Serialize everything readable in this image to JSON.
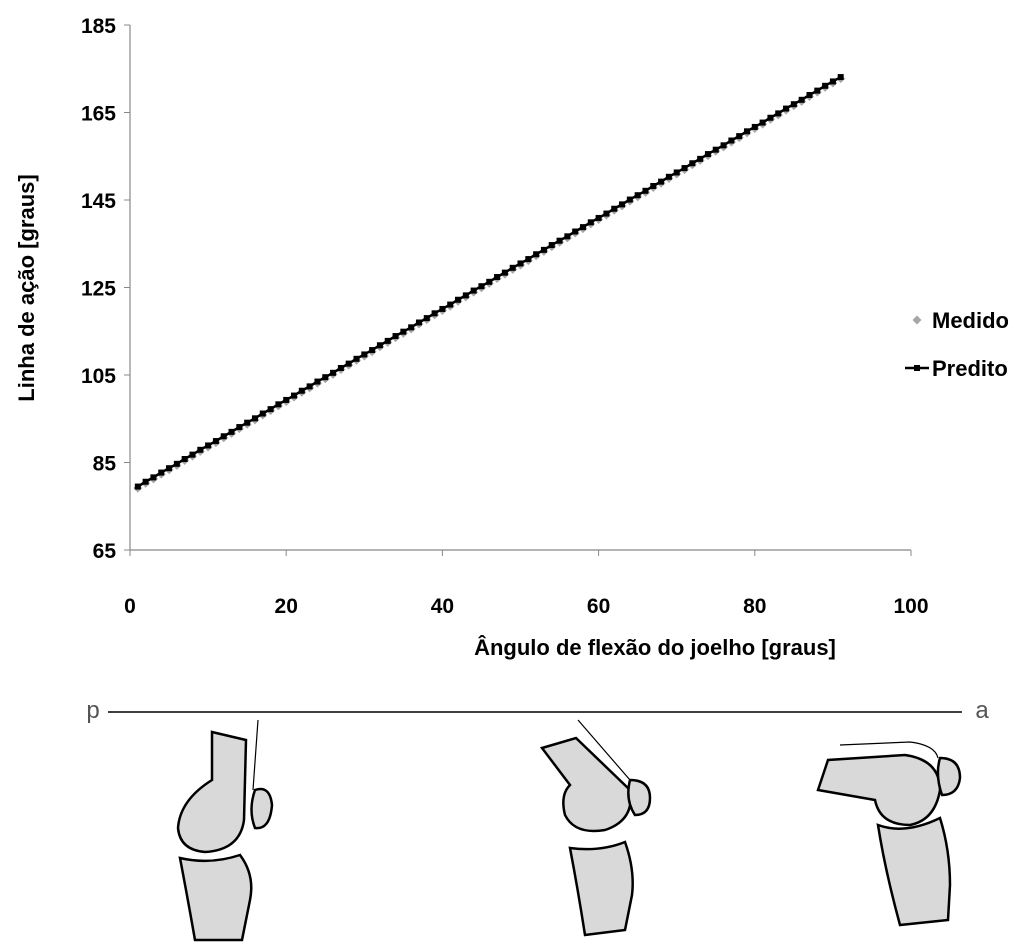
{
  "chart_data": {
    "type": "scatter-line",
    "xlabel": "Ângulo de flexão do joelho [graus]",
    "ylabel": "Linha de ação [graus]",
    "xlim": [
      0,
      100
    ],
    "xticks": [
      0,
      20,
      40,
      60,
      80,
      100
    ],
    "ylim": [
      65,
      185
    ],
    "yticks": [
      65,
      85,
      105,
      125,
      145,
      165,
      185
    ],
    "grid": false,
    "legend": "right",
    "x": [
      1,
      2,
      3,
      4,
      5,
      6,
      7,
      8,
      9,
      10,
      11,
      12,
      13,
      14,
      15,
      16,
      17,
      18,
      19,
      20,
      21,
      22,
      23,
      24,
      25,
      26,
      27,
      28,
      29,
      30,
      31,
      32,
      33,
      34,
      35,
      36,
      37,
      38,
      39,
      40,
      41,
      42,
      43,
      44,
      45,
      46,
      47,
      48,
      49,
      50,
      51,
      52,
      53,
      54,
      55,
      56,
      57,
      58,
      59,
      60,
      61,
      62,
      63,
      64,
      65,
      66,
      67,
      68,
      69,
      70,
      71,
      72,
      73,
      74,
      75,
      76,
      77,
      78,
      79,
      80,
      81,
      82,
      83,
      84,
      85,
      86,
      87,
      88,
      89,
      90,
      91
    ],
    "series": [
      {
        "name": "Medido",
        "color": "#a6a6a6",
        "marker": "diamond",
        "values": [
          79.5,
          80.6,
          81.6,
          82.7,
          83.7,
          84.7,
          85.8,
          86.8,
          87.9,
          88.9,
          89.9,
          91.0,
          92.0,
          93.1,
          94.1,
          95.1,
          96.2,
          97.2,
          98.3,
          99.3,
          100.3,
          101.4,
          102.4,
          103.5,
          104.5,
          105.5,
          106.6,
          107.6,
          108.7,
          109.7,
          110.7,
          111.8,
          112.8,
          113.9,
          114.9,
          115.9,
          117.0,
          118.0,
          119.1,
          120.1,
          121.1,
          122.2,
          123.2,
          124.3,
          125.3,
          126.3,
          127.4,
          128.4,
          129.5,
          130.5,
          131.5,
          132.6,
          133.6,
          134.7,
          135.7,
          136.7,
          137.8,
          138.8,
          139.9,
          140.9,
          141.9,
          143.0,
          144.0,
          145.1,
          146.1,
          147.1,
          148.2,
          149.2,
          150.3,
          151.3,
          152.3,
          153.4,
          154.4,
          155.5,
          156.5,
          157.5,
          158.6,
          159.6,
          160.7,
          161.7,
          162.7,
          163.8,
          164.8,
          165.9,
          166.9,
          167.9,
          169.0,
          170.0,
          171.1,
          172.1,
          173.1
        ]
      },
      {
        "name": "Predito",
        "color": "#000000",
        "marker": "square",
        "values": [
          79.5,
          80.6,
          81.6,
          82.7,
          83.7,
          84.7,
          85.8,
          86.8,
          87.9,
          88.9,
          89.9,
          91.0,
          92.0,
          93.1,
          94.1,
          95.1,
          96.2,
          97.2,
          98.3,
          99.3,
          100.3,
          101.4,
          102.4,
          103.5,
          104.5,
          105.5,
          106.6,
          107.6,
          108.7,
          109.7,
          110.7,
          111.8,
          112.8,
          113.9,
          114.9,
          115.9,
          117.0,
          118.0,
          119.1,
          120.1,
          121.1,
          122.2,
          123.2,
          124.3,
          125.3,
          126.3,
          127.4,
          128.4,
          129.5,
          130.5,
          131.5,
          132.6,
          133.6,
          134.7,
          135.7,
          136.7,
          137.8,
          138.8,
          139.9,
          140.9,
          141.9,
          143.0,
          144.0,
          145.1,
          146.1,
          147.1,
          148.2,
          149.2,
          150.3,
          151.3,
          152.3,
          153.4,
          154.4,
          155.5,
          156.5,
          157.5,
          158.6,
          159.6,
          160.7,
          161.7,
          162.7,
          163.8,
          164.8,
          165.9,
          166.9,
          167.9,
          169.0,
          170.0,
          171.1,
          172.1,
          173.1
        ]
      }
    ]
  },
  "figure": {
    "left_label": "p",
    "right_label": "a"
  }
}
